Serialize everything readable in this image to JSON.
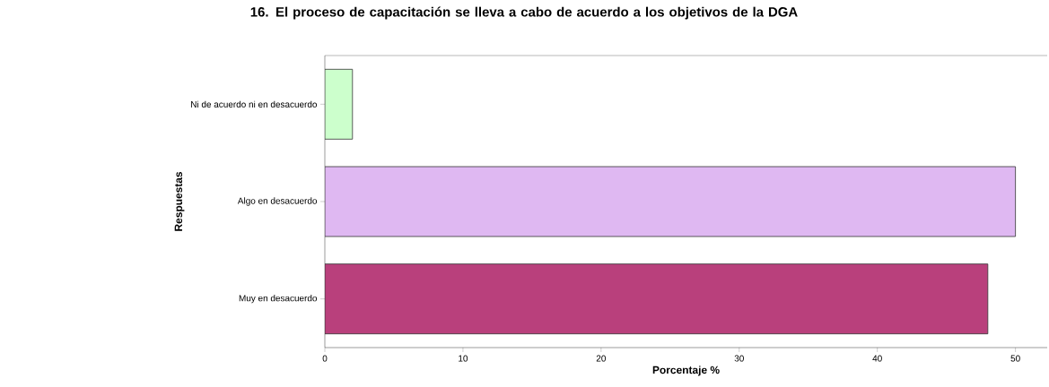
{
  "chart_data": {
    "type": "bar",
    "orientation": "horizontal",
    "title": "16. El proceso de capacitación se lleva a cabo de acuerdo a los objetivos de la DGA",
    "xlabel": "Porcentaje %",
    "ylabel": "Respuestas",
    "categories": [
      "Ni de acuerdo ni en desacuerdo",
      "Algo en desacuerdo",
      "Muy en desacuerdo"
    ],
    "values": [
      2,
      50,
      48
    ],
    "colors": [
      "#ccffcc",
      "#dfb8f2",
      "#b9407c"
    ],
    "xlim": [
      0,
      52.3
    ],
    "xticks": [
      0,
      10,
      20,
      30,
      40,
      50
    ],
    "grid": false,
    "legend": false
  }
}
